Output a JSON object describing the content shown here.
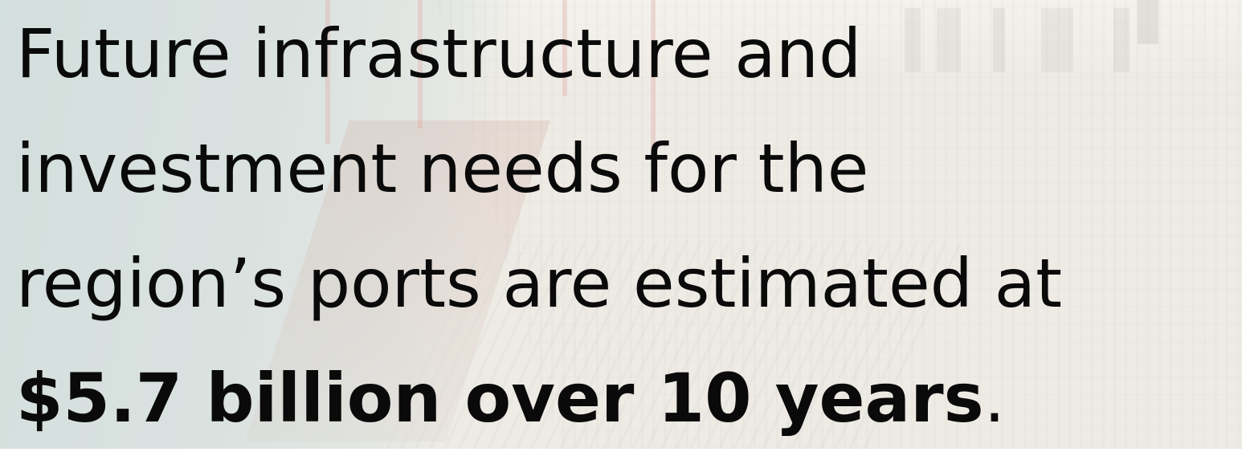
{
  "headline": {
    "line1": "Future infrastructure and",
    "line2": "investment needs for the",
    "line3": "region’s ports are estimated at",
    "line4_bold": "$5.7 billion over 10 years",
    "line4_end": "."
  },
  "colors": {
    "text": "#0a0a0a",
    "water": "#c4d5d6",
    "yard": "#e9e6e1"
  }
}
